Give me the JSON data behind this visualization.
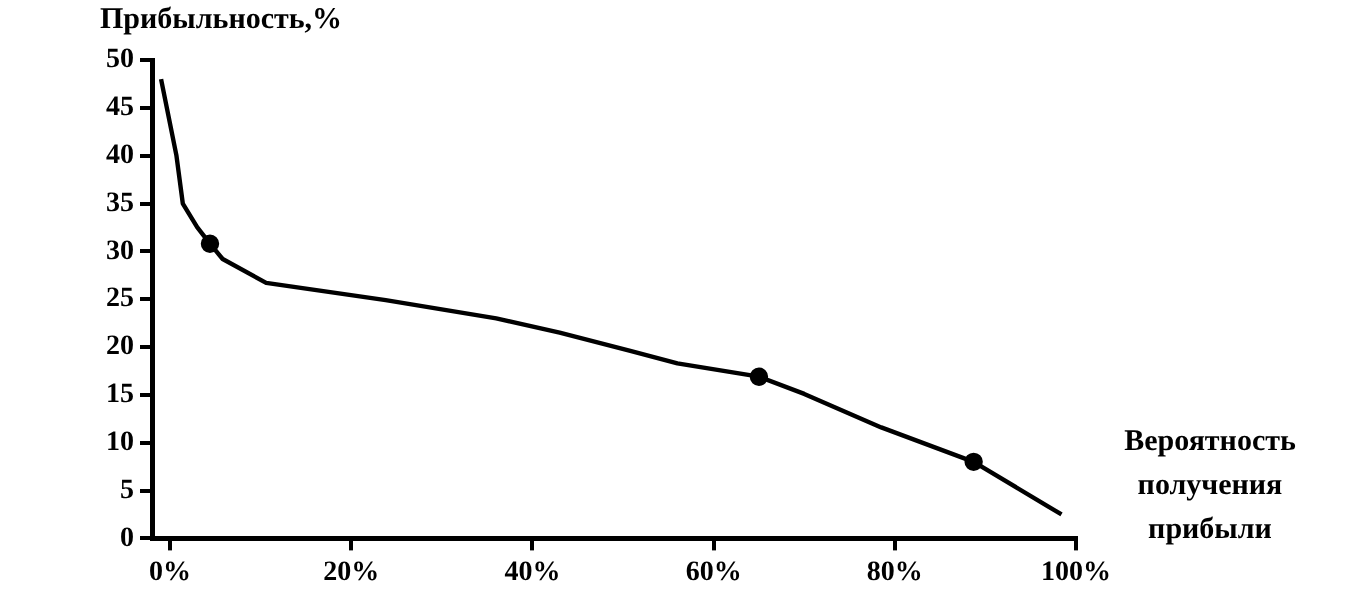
{
  "chart_data": {
    "type": "line",
    "ylabel": "Прибыльность,%",
    "xlabel": "Вероятность получения прибыли",
    "grid": false,
    "legend": false,
    "line_style": "solid",
    "xlim": [
      -2,
      100
    ],
    "xticks": [
      {
        "value": 0,
        "label": "0%"
      },
      {
        "value": 20,
        "label": "20%"
      },
      {
        "value": 40,
        "label": "40%"
      },
      {
        "value": 60,
        "label": "60%"
      },
      {
        "value": 80,
        "label": "80%"
      },
      {
        "value": 100,
        "label": "100%"
      }
    ],
    "ylim": [
      0,
      50
    ],
    "yticks": [
      0,
      5,
      10,
      15,
      20,
      25,
      30,
      35,
      40,
      45,
      50
    ],
    "series": [
      {
        "type": "line",
        "color": "#000000",
        "marker": "none",
        "x": [
          -1,
          0.7,
          1.4,
          3,
          4.4,
          5.8,
          10.6,
          23.8,
          36,
          43,
          50.8,
          56,
          65,
          70,
          78.5,
          88.7,
          98.4
        ],
        "values": [
          48,
          40,
          35,
          32.5,
          30.8,
          29.2,
          26.7,
          24.9,
          23,
          21.5,
          19.6,
          18.3,
          16.9,
          15.1,
          11.6,
          8,
          2.5
        ]
      },
      {
        "type": "scatter",
        "color": "#000000",
        "marker": "circle",
        "x": [
          4.4,
          65,
          88.7
        ],
        "values": [
          30.8,
          16.9,
          8
        ]
      }
    ]
  }
}
